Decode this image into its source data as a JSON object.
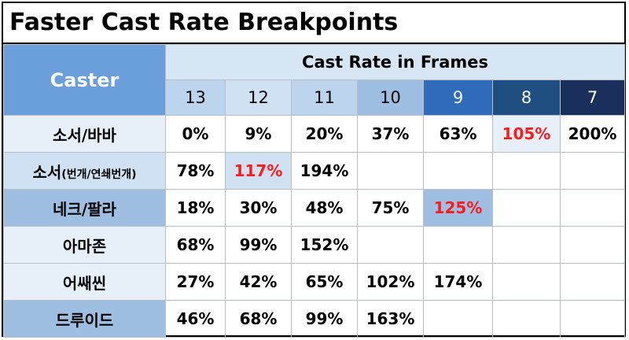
{
  "title": "Faster Cast Rate Breakpoints",
  "header": {
    "caster": "Caster",
    "cast_rate": "Cast Rate in Frames",
    "frames": [
      "13",
      "12",
      "11",
      "10",
      "9",
      "8",
      "7"
    ]
  },
  "rows": [
    {
      "label": "소서/바바",
      "label_small": "",
      "values": [
        "0%",
        "9%",
        "20%",
        "37%",
        "63%",
        "105%",
        "200%"
      ]
    },
    {
      "label": "소서",
      "label_small": "(번개/연쇄번개)",
      "values": [
        "78%",
        "117%",
        "194%",
        "",
        "",
        "",
        ""
      ]
    },
    {
      "label": "네크/팔라",
      "label_small": "",
      "values": [
        "18%",
        "30%",
        "48%",
        "75%",
        "125%",
        "",
        ""
      ]
    },
    {
      "label": "아마존",
      "label_small": "",
      "values": [
        "68%",
        "99%",
        "152%",
        "",
        "",
        "",
        ""
      ]
    },
    {
      "label": "어쌔씬",
      "label_small": "",
      "values": [
        "27%",
        "42%",
        "65%",
        "102%",
        "174%",
        "",
        ""
      ]
    },
    {
      "label": "드루이드",
      "label_small": "",
      "values": [
        "46%",
        "68%",
        "99%",
        "163%",
        "",
        "",
        ""
      ]
    }
  ],
  "highlight_color": "#ff1a1a"
}
